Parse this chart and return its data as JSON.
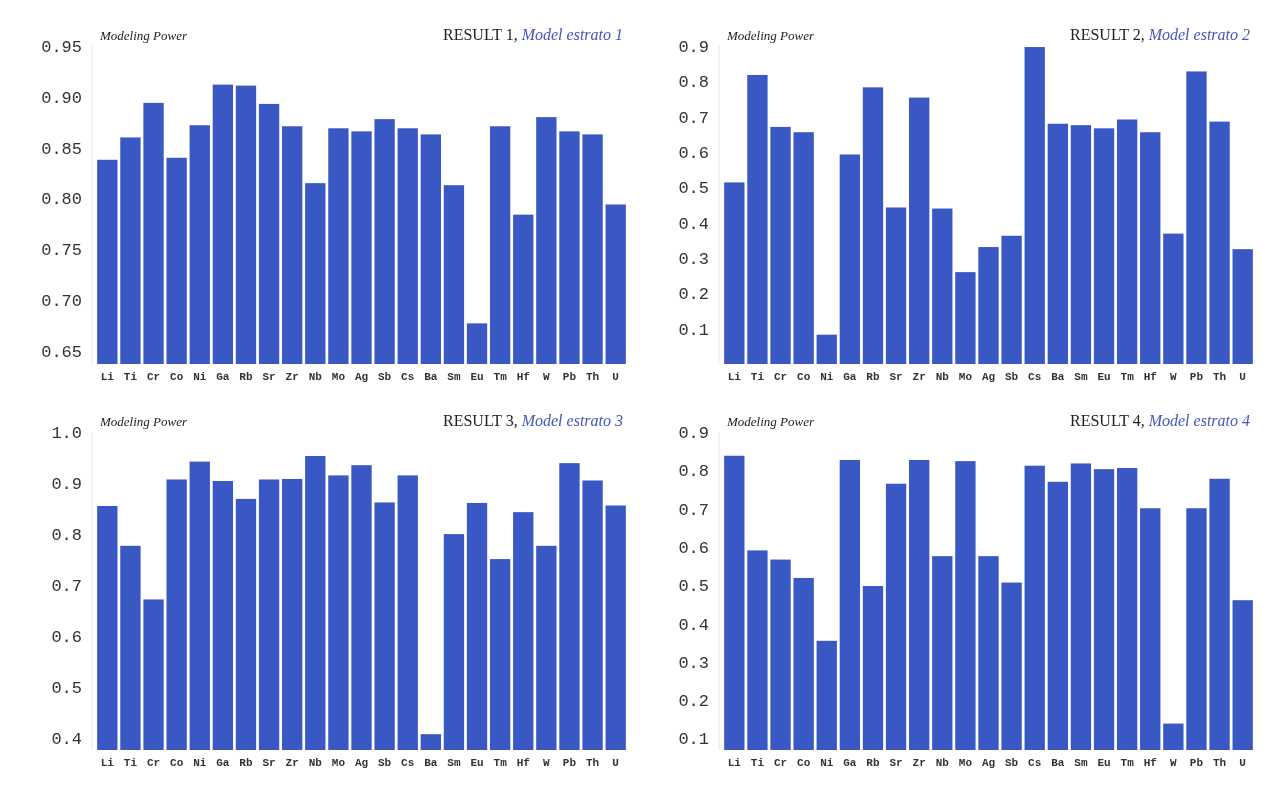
{
  "chart_data": [
    {
      "type": "bar",
      "title": "RESULT 1,",
      "subtitle": "Model estrato 1",
      "ylabel": "Modeling Power",
      "categories": [
        "Li",
        "Ti",
        "Cr",
        "Co",
        "Ni",
        "Ga",
        "Rb",
        "Sr",
        "Zr",
        "Nb",
        "Mo",
        "Ag",
        "Sb",
        "Cs",
        "Ba",
        "Sm",
        "Eu",
        "Tm",
        "Hf",
        "W",
        "Pb",
        "Th",
        "U"
      ],
      "color": "#3a58c4",
      "values": [
        0.838,
        0.86,
        0.894,
        0.84,
        0.872,
        0.912,
        0.911,
        0.893,
        0.871,
        0.815,
        0.869,
        0.866,
        0.878,
        0.869,
        0.863,
        0.813,
        0.677,
        0.871,
        0.784,
        0.88,
        0.866,
        0.863,
        0.794
      ],
      "ylim": [
        0.637,
        0.95
      ],
      "yticks": [
        {
          "value": 0.65,
          "label": "0.65"
        },
        {
          "value": 0.7,
          "label": "0.70"
        },
        {
          "value": 0.75,
          "label": "0.75"
        },
        {
          "value": 0.8,
          "label": "0.80"
        },
        {
          "value": 0.85,
          "label": "0.85"
        },
        {
          "value": 0.9,
          "label": "0.90"
        },
        {
          "value": 0.95,
          "label": "0.95"
        }
      ],
      "grid": false
    },
    {
      "type": "bar",
      "title": "RESULT 2,",
      "subtitle": "Model estrato 2",
      "ylabel": "Modeling Power",
      "categories": [
        "Li",
        "Ti",
        "Cr",
        "Co",
        "Ni",
        "Ga",
        "Rb",
        "Sr",
        "Zr",
        "Nb",
        "Mo",
        "Ag",
        "Sb",
        "Cs",
        "Ba",
        "Sm",
        "Eu",
        "Tm",
        "Hf",
        "W",
        "Pb",
        "Th",
        "U"
      ],
      "color": "#3a58c4",
      "values": [
        0.514,
        0.818,
        0.671,
        0.656,
        0.083,
        0.593,
        0.783,
        0.443,
        0.754,
        0.44,
        0.26,
        0.331,
        0.363,
        0.897,
        0.68,
        0.676,
        0.667,
        0.692,
        0.656,
        0.369,
        0.828,
        0.686,
        0.325
      ],
      "ylim": [
        0,
        0.9
      ],
      "yticks": [
        0.1,
        0.2,
        0.3,
        0.4,
        0.5,
        0.6,
        0.7,
        0.8,
        0.9
      ],
      "grid": false
    },
    {
      "type": "bar",
      "title": "RESULT 3,",
      "subtitle": "Model estrato 3",
      "ylabel": "Modeling Power",
      "categories": [
        "Li",
        "Ti",
        "Cr",
        "Co",
        "Ni",
        "Ga",
        "Rb",
        "Sr",
        "Zr",
        "Nb",
        "Mo",
        "Ag",
        "Sb",
        "Cs",
        "Ba",
        "Sm",
        "Eu",
        "Tm",
        "Hf",
        "W",
        "Pb",
        "Th",
        "U"
      ],
      "color": "#3a58c4",
      "values": [
        0.855,
        0.777,
        0.672,
        0.907,
        0.942,
        0.904,
        0.869,
        0.907,
        0.908,
        0.953,
        0.915,
        0.935,
        0.862,
        0.915,
        0.408,
        0.8,
        0.861,
        0.751,
        0.843,
        0.777,
        0.939,
        0.905,
        0.856
      ],
      "ylim": [
        0.377,
        1.0
      ],
      "yticks": [
        0.4,
        0.5,
        0.6,
        0.7,
        0.8,
        0.9,
        {
          "value": 1.0,
          "label": "1.0"
        }
      ],
      "grid": false
    },
    {
      "type": "bar",
      "title": "RESULT 4,",
      "subtitle": "Model estrato 4",
      "ylabel": "Modeling Power",
      "categories": [
        "Li",
        "Ti",
        "Cr",
        "Co",
        "Ni",
        "Ga",
        "Rb",
        "Sr",
        "Zr",
        "Nb",
        "Mo",
        "Ag",
        "Sb",
        "Cs",
        "Ba",
        "Sm",
        "Eu",
        "Tm",
        "Hf",
        "W",
        "Pb",
        "Th",
        "U"
      ],
      "color": "#3a58c4",
      "values": [
        0.838,
        0.591,
        0.567,
        0.519,
        0.355,
        0.827,
        0.498,
        0.765,
        0.827,
        0.576,
        0.824,
        0.576,
        0.507,
        0.812,
        0.77,
        0.818,
        0.803,
        0.806,
        0.701,
        0.139,
        0.701,
        0.778,
        0.461
      ],
      "ylim": [
        0.07,
        0.9
      ],
      "yticks": [
        0.1,
        0.2,
        0.3,
        0.4,
        0.5,
        0.6,
        0.7,
        0.8,
        0.9
      ],
      "grid": false
    }
  ]
}
